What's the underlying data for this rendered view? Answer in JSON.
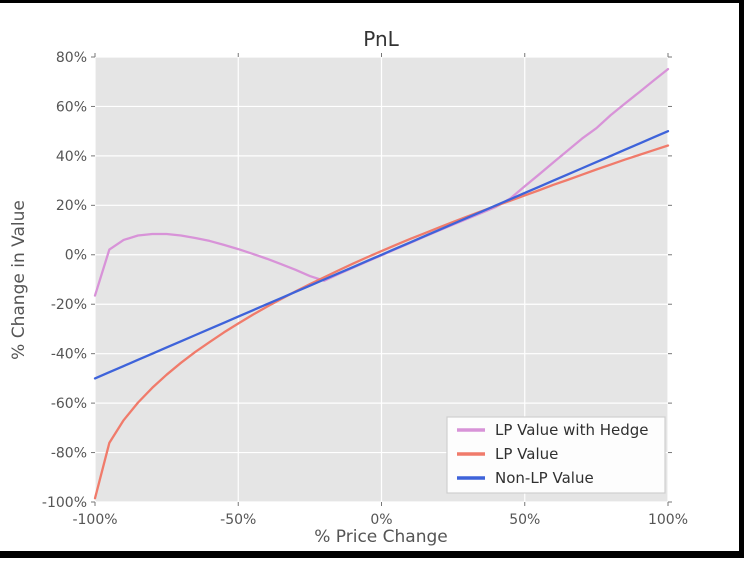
{
  "window": {
    "background": "#ffffff",
    "border_color": "#000000"
  },
  "chart_data": {
    "type": "line",
    "title": "PnL",
    "xlabel": "% Price Change",
    "ylabel": "% Change in Value",
    "xlim": [
      -100,
      100
    ],
    "ylim": [
      -100,
      80
    ],
    "grid": true,
    "plot_bg": "#e5e5e5",
    "grid_color": "#ffffff",
    "tick_color": "#777777",
    "label_color": "#555555",
    "title_color": "#333333",
    "x_ticks": {
      "values": [
        -100,
        -50,
        0,
        50,
        100
      ],
      "labels": [
        "-100%",
        "-50%",
        "0%",
        "50%",
        "100%"
      ]
    },
    "y_ticks": {
      "values": [
        80,
        60,
        40,
        20,
        0,
        -20,
        -40,
        -60,
        -80,
        -100
      ],
      "labels": [
        "80%",
        "60%",
        "40%",
        "20%",
        "0%",
        "-20%",
        "-40%",
        "-60%",
        "-80%",
        "-100%"
      ]
    },
    "legend": {
      "position": "lower right",
      "bg": "#fdfdfd",
      "border": "#cfcfcf",
      "text_color": "#303030"
    },
    "x": [
      -100,
      -95,
      -90,
      -85,
      -80,
      -75,
      -70,
      -65,
      -60,
      -55,
      -50,
      -45,
      -40,
      -35,
      -30,
      -25,
      -20,
      -15,
      -10,
      -5,
      0,
      5,
      10,
      15,
      20,
      25,
      30,
      35,
      40,
      45,
      50,
      55,
      60,
      65,
      70,
      75,
      80,
      85,
      90,
      95,
      100
    ],
    "series": [
      {
        "name": "LP Value with Hedge",
        "color": "#D893D8",
        "values": [
          -16.5,
          2.1,
          6.0,
          7.8,
          8.4,
          8.4,
          7.8,
          6.8,
          5.6,
          4.0,
          2.3,
          0.4,
          -1.6,
          -3.8,
          -6.1,
          -8.6,
          -10.5,
          -7.8,
          -5.3,
          -2.7,
          -0.2,
          2.3,
          4.8,
          7.3,
          9.8,
          12.2,
          14.6,
          17.0,
          19.4,
          22.8,
          27.7,
          32.5,
          37.4,
          42.2,
          47.0,
          51.2,
          56.5,
          61.2,
          65.8,
          70.5,
          75.1
        ]
      },
      {
        "name": "LP Value",
        "color": "#F07B6B",
        "values": [
          -98.5,
          -76.1,
          -66.9,
          -59.8,
          -53.8,
          -48.5,
          -43.7,
          -39.3,
          -35.3,
          -31.4,
          -27.8,
          -24.3,
          -21.0,
          -17.9,
          -14.8,
          -11.9,
          -9.1,
          -6.3,
          -3.6,
          -1.0,
          1.5,
          4.0,
          6.4,
          8.7,
          11.0,
          13.3,
          15.5,
          17.7,
          19.8,
          21.9,
          24.0,
          26.1,
          28.3,
          30.3,
          32.4,
          34.5,
          36.5,
          38.5,
          40.4,
          42.3,
          44.2
        ]
      },
      {
        "name": "Non-LP Value",
        "color": "#3E63DA",
        "values": [
          -50,
          -47.5,
          -45,
          -42.5,
          -40,
          -37.5,
          -35,
          -32.5,
          -30,
          -27.5,
          -25,
          -22.5,
          -20,
          -17.5,
          -15,
          -12.5,
          -10,
          -7.5,
          -5,
          -2.5,
          0,
          2.5,
          5,
          7.5,
          10,
          12.5,
          15,
          17.5,
          20,
          22.5,
          25,
          27.5,
          30,
          32.5,
          35,
          37.5,
          40,
          42.5,
          45,
          47.5,
          50
        ]
      }
    ]
  }
}
